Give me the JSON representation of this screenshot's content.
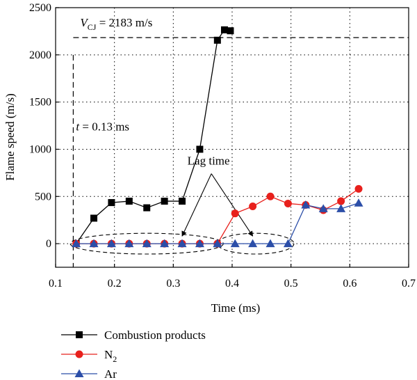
{
  "chart_data": {
    "type": "line",
    "xlabel": "Time (ms)",
    "ylabel": "Flame speed (m/s)",
    "xlim": [
      0.1,
      0.7
    ],
    "ylim": [
      -250,
      2500
    ],
    "xticks": [
      0.1,
      0.2,
      0.3,
      0.4,
      0.5,
      0.6,
      0.7
    ],
    "yticks": [
      0,
      500,
      1000,
      1500,
      2000,
      2500
    ],
    "xtick_labels": [
      "0.1",
      "0.2",
      "0.3",
      "0.4",
      "0.5",
      "0.6",
      "0.7"
    ],
    "ytick_labels": [
      "0",
      "500",
      "1000",
      "1500",
      "2000",
      "2500"
    ],
    "grid": true,
    "legend_position": "below",
    "series": [
      {
        "name": "Combustion products",
        "color": "#000000",
        "marker": "square",
        "x": [
          0.135,
          0.165,
          0.195,
          0.225,
          0.255,
          0.285,
          0.315,
          0.345,
          0.375,
          0.387,
          0.397
        ],
        "y": [
          0,
          270,
          435,
          450,
          380,
          450,
          450,
          1000,
          2155,
          2265,
          2255
        ]
      },
      {
        "name": "N",
        "name_sub": "2",
        "color": "#e8201c",
        "marker": "circle",
        "x": [
          0.135,
          0.165,
          0.195,
          0.225,
          0.255,
          0.285,
          0.315,
          0.345,
          0.375,
          0.405,
          0.435,
          0.465,
          0.495,
          0.525,
          0.555,
          0.585,
          0.615
        ],
        "y": [
          0,
          0,
          0,
          0,
          0,
          0,
          0,
          0,
          0,
          320,
          395,
          500,
          425,
          410,
          355,
          450,
          580
        ]
      },
      {
        "name": "Ar",
        "color": "#2b4ea8",
        "marker": "triangle",
        "x": [
          0.135,
          0.165,
          0.195,
          0.225,
          0.255,
          0.285,
          0.315,
          0.345,
          0.375,
          0.405,
          0.435,
          0.465,
          0.495,
          0.525,
          0.555,
          0.585,
          0.615
        ],
        "y": [
          0,
          0,
          0,
          0,
          0,
          0,
          0,
          0,
          0,
          0,
          0,
          0,
          0,
          410,
          370,
          370,
          430
        ]
      }
    ],
    "reference_lines": [
      {
        "orientation": "horizontal",
        "value": 2183,
        "label_var": "V",
        "label_sub": "CJ",
        "label_text": " = 2183 m/s"
      },
      {
        "orientation": "vertical",
        "value": 0.13,
        "label_var": "t",
        "label_text": " = 0.13 ms"
      }
    ],
    "annotations": {
      "lag_time": {
        "text": "Lag time",
        "x": 0.36,
        "y": 800,
        "arrow_targets": [
          [
            0.315,
            80
          ],
          [
            0.435,
            80
          ]
        ]
      },
      "ellipses": [
        {
          "cx": 0.255,
          "cy": 0,
          "rx": 0.13,
          "ry": 110
        },
        {
          "cx": 0.44,
          "cy": 0,
          "rx": 0.065,
          "ry": 110
        }
      ]
    }
  }
}
